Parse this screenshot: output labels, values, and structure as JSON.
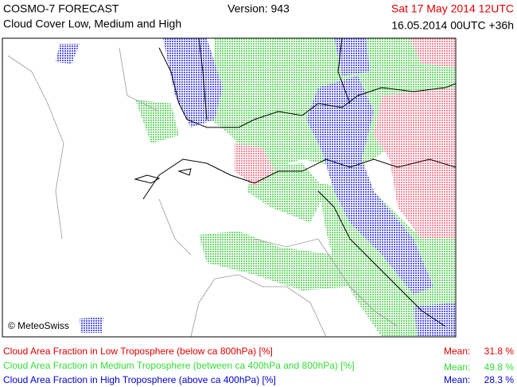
{
  "header": {
    "title": "COSMO-7 FORECAST",
    "subtitle": "Cloud Cover Low, Medium and High",
    "version": "Version: 943",
    "valid_time": "Sat 17 May 2014 12UTC",
    "run": "16.05.2014 00UTC +36h"
  },
  "map": {
    "copyright": "© MeteoSwiss"
  },
  "legend": [
    {
      "label": "Cloud Area Fraction in Low Troposphere (below ca 800hPa) [%]",
      "mean_label": "Mean:",
      "mean": "31.8 %"
    },
    {
      "label": "Cloud Area Fraction in Medium Troposphere (between ca 400hPa and 800hPa) [%]",
      "mean_label": "Mean:",
      "mean": "49.8 %"
    },
    {
      "label": "Cloud Area Fraction in High Troposphere (above ca 400hPa) [%]",
      "mean_label": "Mean:",
      "mean": "28.3 %"
    }
  ]
}
